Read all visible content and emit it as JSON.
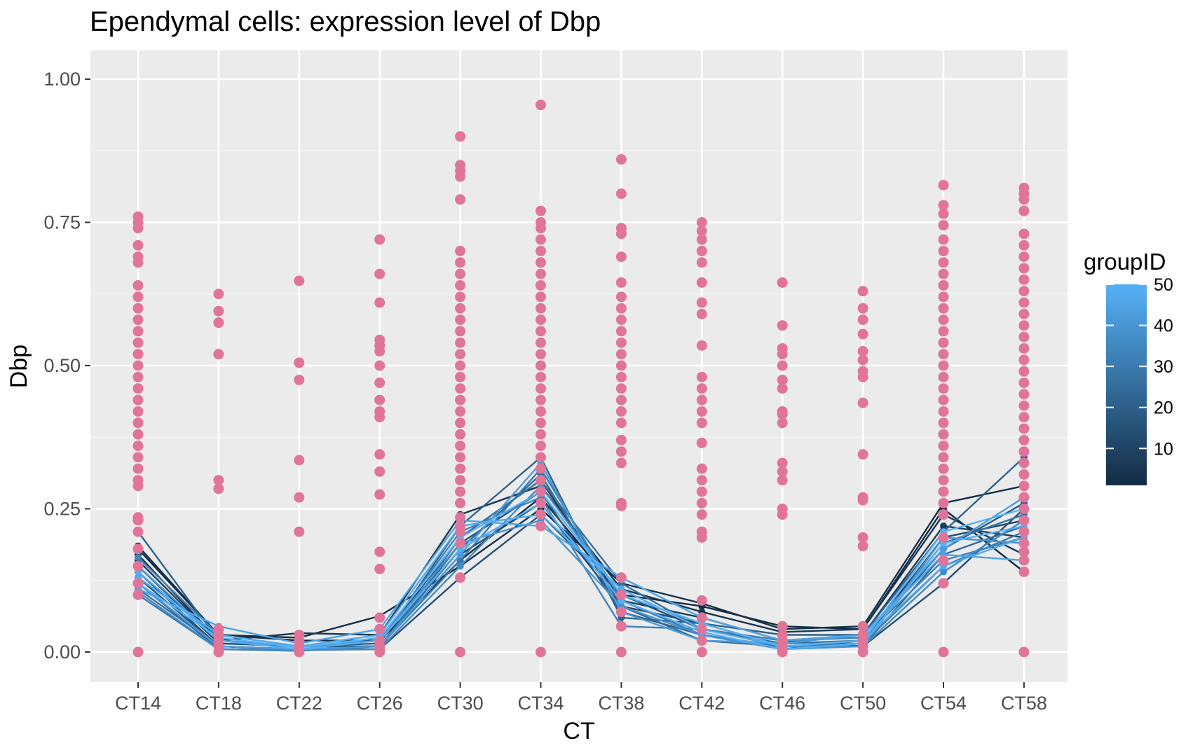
{
  "chart_data": {
    "type": "line",
    "title": "Ependymal cells: expression level of Dbp",
    "xlabel": "CT",
    "ylabel": "Dbp",
    "categories": [
      "CT14",
      "CT18",
      "CT22",
      "CT26",
      "CT30",
      "CT34",
      "CT38",
      "CT42",
      "CT46",
      "CT50",
      "CT54",
      "CT58"
    ],
    "ylim": [
      -0.05,
      1.05
    ],
    "yticks": [
      0.0,
      0.25,
      0.5,
      0.75,
      1.0
    ],
    "ytick_labels": [
      "0.00",
      "0.25",
      "0.50",
      "0.75",
      "1.00"
    ],
    "grid": true,
    "background": "#ebebeb",
    "point_color": "#e07499",
    "legend": {
      "title": "groupID",
      "position": "right",
      "type": "colorbar",
      "range": [
        1,
        50
      ],
      "ticks": [
        10,
        20,
        30,
        40,
        50
      ],
      "tick_labels": [
        "10",
        "20",
        "30",
        "40",
        "50"
      ],
      "color_low": "#132b43",
      "color_high": "#56b1f7"
    },
    "point_values": [
      [
        0.0,
        0.1,
        0.12,
        0.15,
        0.18,
        0.21,
        0.23,
        0.235,
        0.29,
        0.3,
        0.32,
        0.34,
        0.36,
        0.38,
        0.4,
        0.42,
        0.44,
        0.46,
        0.48,
        0.5,
        0.52,
        0.54,
        0.56,
        0.58,
        0.6,
        0.62,
        0.64,
        0.68,
        0.69,
        0.71,
        0.74,
        0.75,
        0.76
      ],
      [
        0.0,
        0.01,
        0.02,
        0.03,
        0.04,
        0.285,
        0.3,
        0.52,
        0.575,
        0.595,
        0.625
      ],
      [
        0.0,
        0.005,
        0.01,
        0.02,
        0.03,
        0.21,
        0.27,
        0.335,
        0.475,
        0.505,
        0.648
      ],
      [
        0.0,
        0.005,
        0.01,
        0.02,
        0.04,
        0.06,
        0.145,
        0.175,
        0.275,
        0.315,
        0.345,
        0.41,
        0.42,
        0.44,
        0.47,
        0.5,
        0.525,
        0.535,
        0.545,
        0.61,
        0.66,
        0.72
      ],
      [
        0.0,
        0.13,
        0.19,
        0.21,
        0.22,
        0.235,
        0.26,
        0.28,
        0.3,
        0.32,
        0.34,
        0.36,
        0.38,
        0.4,
        0.42,
        0.44,
        0.46,
        0.48,
        0.5,
        0.52,
        0.54,
        0.56,
        0.58,
        0.6,
        0.62,
        0.64,
        0.66,
        0.68,
        0.7,
        0.79,
        0.83,
        0.84,
        0.85,
        0.9
      ],
      [
        0.0,
        0.22,
        0.24,
        0.26,
        0.28,
        0.3,
        0.32,
        0.34,
        0.36,
        0.38,
        0.4,
        0.42,
        0.44,
        0.46,
        0.48,
        0.5,
        0.52,
        0.54,
        0.56,
        0.58,
        0.6,
        0.62,
        0.64,
        0.66,
        0.68,
        0.7,
        0.72,
        0.74,
        0.75,
        0.77,
        0.955
      ],
      [
        0.0,
        0.045,
        0.07,
        0.1,
        0.13,
        0.255,
        0.26,
        0.33,
        0.35,
        0.37,
        0.4,
        0.42,
        0.44,
        0.46,
        0.48,
        0.5,
        0.52,
        0.54,
        0.56,
        0.58,
        0.6,
        0.62,
        0.645,
        0.69,
        0.73,
        0.74,
        0.8,
        0.86
      ],
      [
        0.0,
        0.02,
        0.04,
        0.06,
        0.09,
        0.2,
        0.21,
        0.24,
        0.26,
        0.28,
        0.3,
        0.32,
        0.365,
        0.4,
        0.42,
        0.44,
        0.46,
        0.48,
        0.535,
        0.59,
        0.61,
        0.645,
        0.68,
        0.7,
        0.72,
        0.735,
        0.75
      ],
      [
        0.0,
        0.005,
        0.01,
        0.02,
        0.03,
        0.045,
        0.24,
        0.25,
        0.3,
        0.315,
        0.33,
        0.4,
        0.415,
        0.42,
        0.46,
        0.475,
        0.5,
        0.52,
        0.53,
        0.57,
        0.645
      ],
      [
        0.0,
        0.01,
        0.02,
        0.03,
        0.045,
        0.185,
        0.2,
        0.265,
        0.27,
        0.345,
        0.435,
        0.48,
        0.49,
        0.51,
        0.525,
        0.555,
        0.58,
        0.6,
        0.63
      ],
      [
        0.0,
        0.12,
        0.16,
        0.2,
        0.24,
        0.26,
        0.28,
        0.3,
        0.32,
        0.34,
        0.36,
        0.38,
        0.4,
        0.42,
        0.44,
        0.46,
        0.48,
        0.5,
        0.52,
        0.54,
        0.56,
        0.58,
        0.6,
        0.62,
        0.64,
        0.66,
        0.68,
        0.7,
        0.72,
        0.745,
        0.765,
        0.78,
        0.815
      ],
      [
        0.0,
        0.14,
        0.16,
        0.175,
        0.19,
        0.21,
        0.23,
        0.25,
        0.27,
        0.29,
        0.31,
        0.33,
        0.35,
        0.37,
        0.39,
        0.41,
        0.43,
        0.45,
        0.47,
        0.49,
        0.51,
        0.53,
        0.55,
        0.57,
        0.59,
        0.61,
        0.63,
        0.65,
        0.67,
        0.69,
        0.71,
        0.73,
        0.77,
        0.79,
        0.8,
        0.81
      ]
    ],
    "series": [
      {
        "groupID": 1,
        "values": [
          0.18,
          0.03,
          0.02,
          0.02,
          0.16,
          0.27,
          0.1,
          0.08,
          0.045,
          0.04,
          0.25,
          0.14
        ]
      },
      {
        "groupID": 3,
        "values": [
          0.185,
          0.03,
          0.025,
          0.063,
          0.15,
          0.25,
          0.12,
          0.085,
          0.04,
          0.045,
          0.26,
          0.29
        ]
      },
      {
        "groupID": 5,
        "values": [
          0.17,
          0.02,
          0.033,
          0.03,
          0.24,
          0.29,
          0.11,
          0.07,
          0.035,
          0.04,
          0.24,
          0.17
        ]
      },
      {
        "groupID": 8,
        "values": [
          0.16,
          0.02,
          0.01,
          0.02,
          0.2,
          0.3,
          0.09,
          0.06,
          0.02,
          0.03,
          0.22,
          0.2
        ]
      },
      {
        "groupID": 12,
        "values": [
          0.15,
          0.015,
          0.01,
          0.01,
          0.17,
          0.26,
          0.08,
          0.05,
          0.01,
          0.02,
          0.2,
          0.23
        ]
      },
      {
        "groupID": 15,
        "values": [
          0.14,
          0.01,
          0.005,
          0.005,
          0.13,
          0.24,
          0.1,
          0.04,
          0.02,
          0.01,
          0.12,
          0.25
        ]
      },
      {
        "groupID": 18,
        "values": [
          0.13,
          0.01,
          0.005,
          0.01,
          0.19,
          0.28,
          0.07,
          0.03,
          0.005,
          0.02,
          0.18,
          0.26
        ]
      },
      {
        "groupID": 21,
        "values": [
          0.21,
          0.02,
          0.01,
          0.015,
          0.22,
          0.34,
          0.06,
          0.05,
          0.03,
          0.03,
          0.21,
          0.34
        ]
      },
      {
        "groupID": 24,
        "values": [
          0.12,
          0.005,
          0.005,
          0.01,
          0.18,
          0.31,
          0.08,
          0.02,
          0.01,
          0.01,
          0.17,
          0.22
        ]
      },
      {
        "groupID": 27,
        "values": [
          0.11,
          0.01,
          0.005,
          0.005,
          0.2,
          0.3,
          0.12,
          0.04,
          0.015,
          0.02,
          0.19,
          0.24
        ]
      },
      {
        "groupID": 30,
        "values": [
          0.1,
          0.005,
          0.002,
          0.01,
          0.16,
          0.32,
          0.09,
          0.03,
          0.01,
          0.015,
          0.15,
          0.21
        ]
      },
      {
        "groupID": 33,
        "values": [
          0.165,
          0.03,
          0.01,
          0.02,
          0.21,
          0.27,
          0.045,
          0.04,
          0.02,
          0.025,
          0.16,
          0.2
        ]
      },
      {
        "groupID": 36,
        "values": [
          0.105,
          0.005,
          0.003,
          0.005,
          0.15,
          0.29,
          0.1,
          0.05,
          0.01,
          0.01,
          0.14,
          0.23
        ]
      },
      {
        "groupID": 39,
        "values": [
          0.15,
          0.02,
          0.01,
          0.02,
          0.19,
          0.23,
          0.08,
          0.03,
          0.005,
          0.01,
          0.2,
          0.19
        ]
      },
      {
        "groupID": 42,
        "values": [
          0.12,
          0.01,
          0.005,
          0.01,
          0.17,
          0.33,
          0.07,
          0.02,
          0.015,
          0.03,
          0.18,
          0.27
        ]
      },
      {
        "groupID": 45,
        "values": [
          0.11,
          0.045,
          0.015,
          0.04,
          0.23,
          0.22,
          0.13,
          0.06,
          0.02,
          0.03,
          0.17,
          0.16
        ]
      },
      {
        "groupID": 47,
        "values": [
          0.13,
          0.03,
          0.01,
          0.03,
          0.22,
          0.24,
          0.11,
          0.04,
          0.01,
          0.02,
          0.15,
          0.2
        ]
      },
      {
        "groupID": 49,
        "values": [
          0.14,
          0.02,
          0.005,
          0.02,
          0.18,
          0.26,
          0.09,
          0.035,
          0.005,
          0.015,
          0.19,
          0.22
        ]
      },
      {
        "groupID": 50,
        "values": [
          0.12,
          0.025,
          0.008,
          0.025,
          0.2,
          0.28,
          0.1,
          0.05,
          0.01,
          0.02,
          0.21,
          0.25
        ]
      }
    ]
  }
}
